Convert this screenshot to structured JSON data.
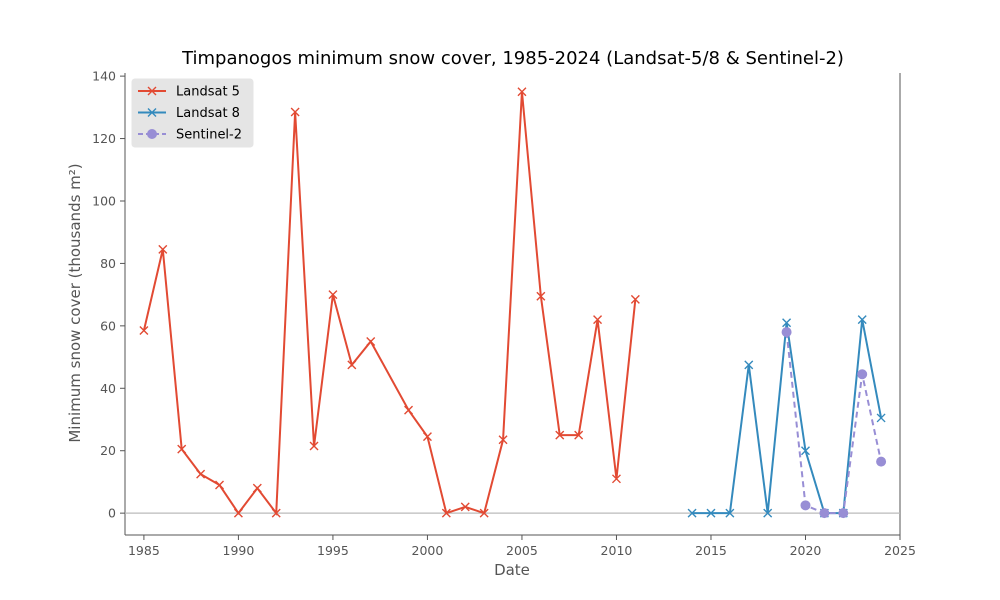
{
  "chart_data": {
    "type": "line",
    "title": "Timpanogos minimum snow cover, 1985-2024 (Landsat-5/8 & Sentinel-2)",
    "xlabel": "Date",
    "ylabel": "Minimum snow cover (thousands m²)",
    "xlim": [
      1984,
      2025
    ],
    "ylim": [
      -7,
      141
    ],
    "xticks": [
      "1985",
      "1990",
      "1995",
      "2000",
      "2005",
      "2010",
      "2015",
      "2020",
      "2025"
    ],
    "yticks": [
      "0",
      "20",
      "40",
      "60",
      "80",
      "100",
      "120",
      "140"
    ],
    "zero_line": true,
    "grid": false,
    "legend_position": "top-left",
    "series": [
      {
        "name": "Landsat 5",
        "color": "#e24a33",
        "marker": "x",
        "linestyle": "solid",
        "points": [
          [
            1985,
            58.5
          ],
          [
            1986,
            84.5
          ],
          [
            1987,
            20.5
          ],
          [
            1988,
            12.5
          ],
          [
            1989,
            9
          ],
          [
            1990,
            0
          ],
          [
            1991,
            8
          ],
          [
            1992,
            0
          ],
          [
            1993,
            128.5
          ],
          [
            1994,
            21.5
          ],
          [
            1995,
            70
          ],
          [
            1996,
            47.5
          ],
          [
            1997,
            55
          ],
          [
            1999,
            33
          ],
          [
            2000,
            24.5
          ],
          [
            2001,
            0
          ],
          [
            2002,
            2
          ],
          [
            2003,
            0
          ],
          [
            2004,
            23.5
          ],
          [
            2005,
            135
          ],
          [
            2006,
            69.5
          ],
          [
            2007,
            25
          ],
          [
            2008,
            25
          ],
          [
            2009,
            62
          ],
          [
            2010,
            11
          ],
          [
            2011,
            68.5
          ]
        ]
      },
      {
        "name": "Landsat 8",
        "color": "#348abd",
        "marker": "x",
        "linestyle": "solid",
        "points": [
          [
            2014,
            0
          ],
          [
            2015,
            0
          ],
          [
            2016,
            0
          ],
          [
            2017,
            47.5
          ],
          [
            2018,
            0
          ],
          [
            2019,
            61
          ],
          [
            2020,
            20
          ],
          [
            2021,
            0
          ],
          [
            2022,
            0
          ],
          [
            2023,
            62
          ],
          [
            2024,
            30.5
          ]
        ]
      },
      {
        "name": "Sentinel-2",
        "color": "#988ed5",
        "marker": "o",
        "linestyle": "dashed",
        "points": [
          [
            2019,
            58
          ],
          [
            2020,
            2.5
          ],
          [
            2021,
            0
          ],
          [
            2022,
            0
          ],
          [
            2023,
            44.5
          ],
          [
            2024,
            16.5
          ]
        ]
      }
    ]
  }
}
